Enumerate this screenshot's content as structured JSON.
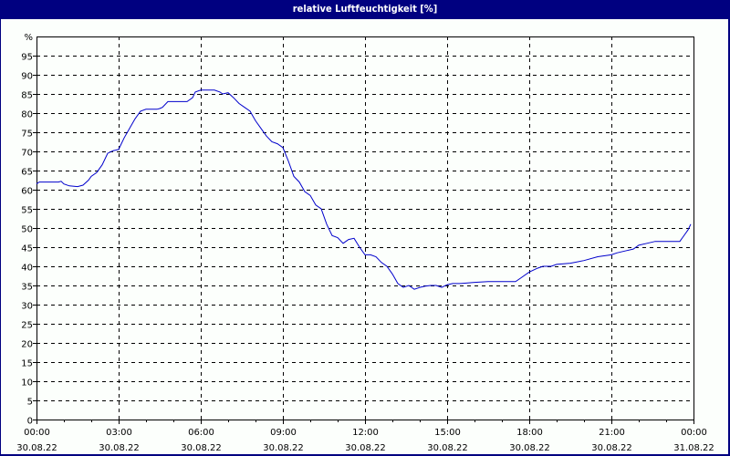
{
  "window": {
    "title": "relative Luftfeuchtigkeit [%]",
    "title_bar_color": "#000080",
    "background_color": "#fcfffc"
  },
  "chart_data": {
    "type": "line",
    "title": "relative Luftfeuchtigkeit [%]",
    "xlabel": "",
    "ylabel": "%",
    "ylim": [
      0,
      100
    ],
    "y_ticks": [
      0,
      5,
      10,
      15,
      20,
      25,
      30,
      35,
      40,
      45,
      50,
      55,
      60,
      65,
      70,
      75,
      80,
      85,
      90,
      95
    ],
    "y_top_label": "%",
    "x_range_hours": [
      0,
      24
    ],
    "x_ticks": [
      {
        "hour": 0,
        "time": "00:00",
        "date": "30.08.22"
      },
      {
        "hour": 3,
        "time": "03:00",
        "date": "30.08.22"
      },
      {
        "hour": 6,
        "time": "06:00",
        "date": "30.08.22"
      },
      {
        "hour": 9,
        "time": "09:00",
        "date": "30.08.22"
      },
      {
        "hour": 12,
        "time": "12:00",
        "date": "30.08.22"
      },
      {
        "hour": 15,
        "time": "15:00",
        "date": "30.08.22"
      },
      {
        "hour": 18,
        "time": "18:00",
        "date": "30.08.22"
      },
      {
        "hour": 21,
        "time": "21:00",
        "date": "30.08.22"
      },
      {
        "hour": 24,
        "time": "00:00",
        "date": "31.08.22"
      }
    ],
    "grid": true,
    "grid_style": "dashed",
    "legend": "none",
    "line_color": "#0000cc",
    "series": [
      {
        "name": "relative Luftfeuchtigkeit",
        "x": [
          0,
          0.1,
          0.3,
          0.8,
          0.9,
          1.0,
          1.2,
          1.5,
          1.7,
          1.9,
          2.0,
          2.2,
          2.4,
          2.6,
          2.8,
          3.0,
          3.2,
          3.4,
          3.6,
          3.8,
          4.0,
          4.2,
          4.4,
          4.5,
          4.6,
          4.8,
          5.0,
          5.5,
          5.7,
          5.8,
          6.0,
          6.2,
          6.5,
          6.7,
          6.8,
          7.0,
          7.2,
          7.4,
          7.6,
          7.8,
          8.0,
          8.2,
          8.4,
          8.6,
          8.8,
          9.0,
          9.2,
          9.4,
          9.6,
          9.8,
          10.0,
          10.2,
          10.4,
          10.6,
          10.8,
          11.0,
          11.2,
          11.4,
          11.6,
          11.8,
          12.0,
          12.2,
          12.4,
          12.6,
          12.8,
          13.0,
          13.2,
          13.4,
          13.6,
          13.8,
          14.0,
          14.2,
          14.4,
          14.6,
          14.8,
          15.0,
          15.2,
          15.5,
          16.0,
          16.5,
          17.0,
          17.5,
          17.7,
          18.0,
          18.3,
          18.5,
          18.8,
          19.0,
          19.5,
          20.0,
          20.5,
          21.0,
          21.2,
          21.5,
          21.8,
          22.0,
          22.3,
          22.6,
          23.0,
          23.5,
          23.6,
          23.8,
          23.9
        ],
        "values": [
          61.5,
          62,
          62,
          62,
          62.2,
          61.5,
          61,
          60.8,
          61.2,
          62.5,
          63.5,
          64.5,
          66.5,
          69.5,
          70.2,
          70.5,
          73.5,
          76,
          78.5,
          80.5,
          81,
          81,
          81,
          81.2,
          81.5,
          83,
          83,
          83,
          84,
          85.5,
          86,
          86,
          86,
          85.5,
          85,
          85.3,
          84,
          82.5,
          81.5,
          80.5,
          78,
          76,
          74,
          72.5,
          72,
          71,
          67.5,
          63.5,
          62,
          59.5,
          58.5,
          56,
          55,
          51,
          48,
          47.5,
          46,
          47,
          47.3,
          45,
          43,
          43,
          42.5,
          41,
          40,
          38,
          35.5,
          34.5,
          35,
          34,
          34.5,
          34.8,
          35,
          35,
          34.5,
          35.2,
          35.5,
          35.5,
          35.8,
          36,
          36,
          36,
          37,
          38.5,
          39.5,
          40,
          40,
          40.5,
          40.8,
          41.5,
          42.5,
          43,
          43.5,
          44,
          44.5,
          45.5,
          46,
          46.5,
          46.5,
          46.5,
          47.5,
          49.5,
          51
        ]
      }
    ]
  }
}
